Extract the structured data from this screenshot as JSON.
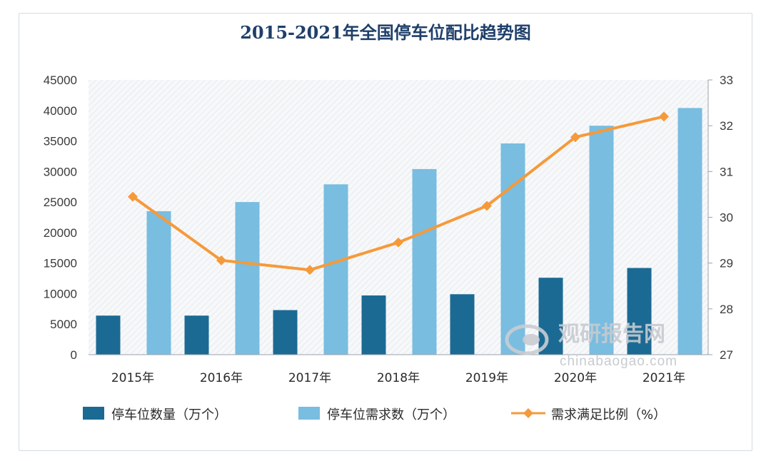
{
  "chart_data": {
    "type": "bar",
    "title": "2015-2021年全国停车位配比趋势图",
    "categories": [
      "2015年",
      "2016年",
      "2017年",
      "2018年",
      "2019年",
      "2020年",
      "2021年"
    ],
    "series": [
      {
        "name": "停车位数量（万个）",
        "type": "bar",
        "axis": "left",
        "values": [
          6400,
          6400,
          7300,
          9700,
          9900,
          12600,
          14200
        ]
      },
      {
        "name": "停车位需求数（万个）",
        "type": "bar",
        "axis": "left",
        "values": [
          23500,
          25000,
          27900,
          30400,
          34600,
          37500,
          40400
        ]
      },
      {
        "name": "需求满足比例（%）",
        "type": "line",
        "axis": "right",
        "values": [
          30.45,
          29.06,
          28.85,
          29.45,
          30.25,
          31.75,
          32.2
        ]
      }
    ],
    "ylim": [
      0,
      45000
    ],
    "yticks": [
      "0",
      "5000",
      "10000",
      "15000",
      "20000",
      "25000",
      "30000",
      "35000",
      "40000",
      "45000"
    ],
    "y2lim": [
      27,
      33
    ],
    "y2ticks": [
      "27",
      "28",
      "29",
      "30",
      "31",
      "32",
      "33"
    ],
    "legend_position": "bottom",
    "colors": {
      "bar1": "#1b6a94",
      "bar2": "#79bde0",
      "line": "#f59a3a",
      "title": "#1f3f6a"
    }
  },
  "watermark": {
    "brand": "观研报告网",
    "url": "chinabaogao.com"
  }
}
